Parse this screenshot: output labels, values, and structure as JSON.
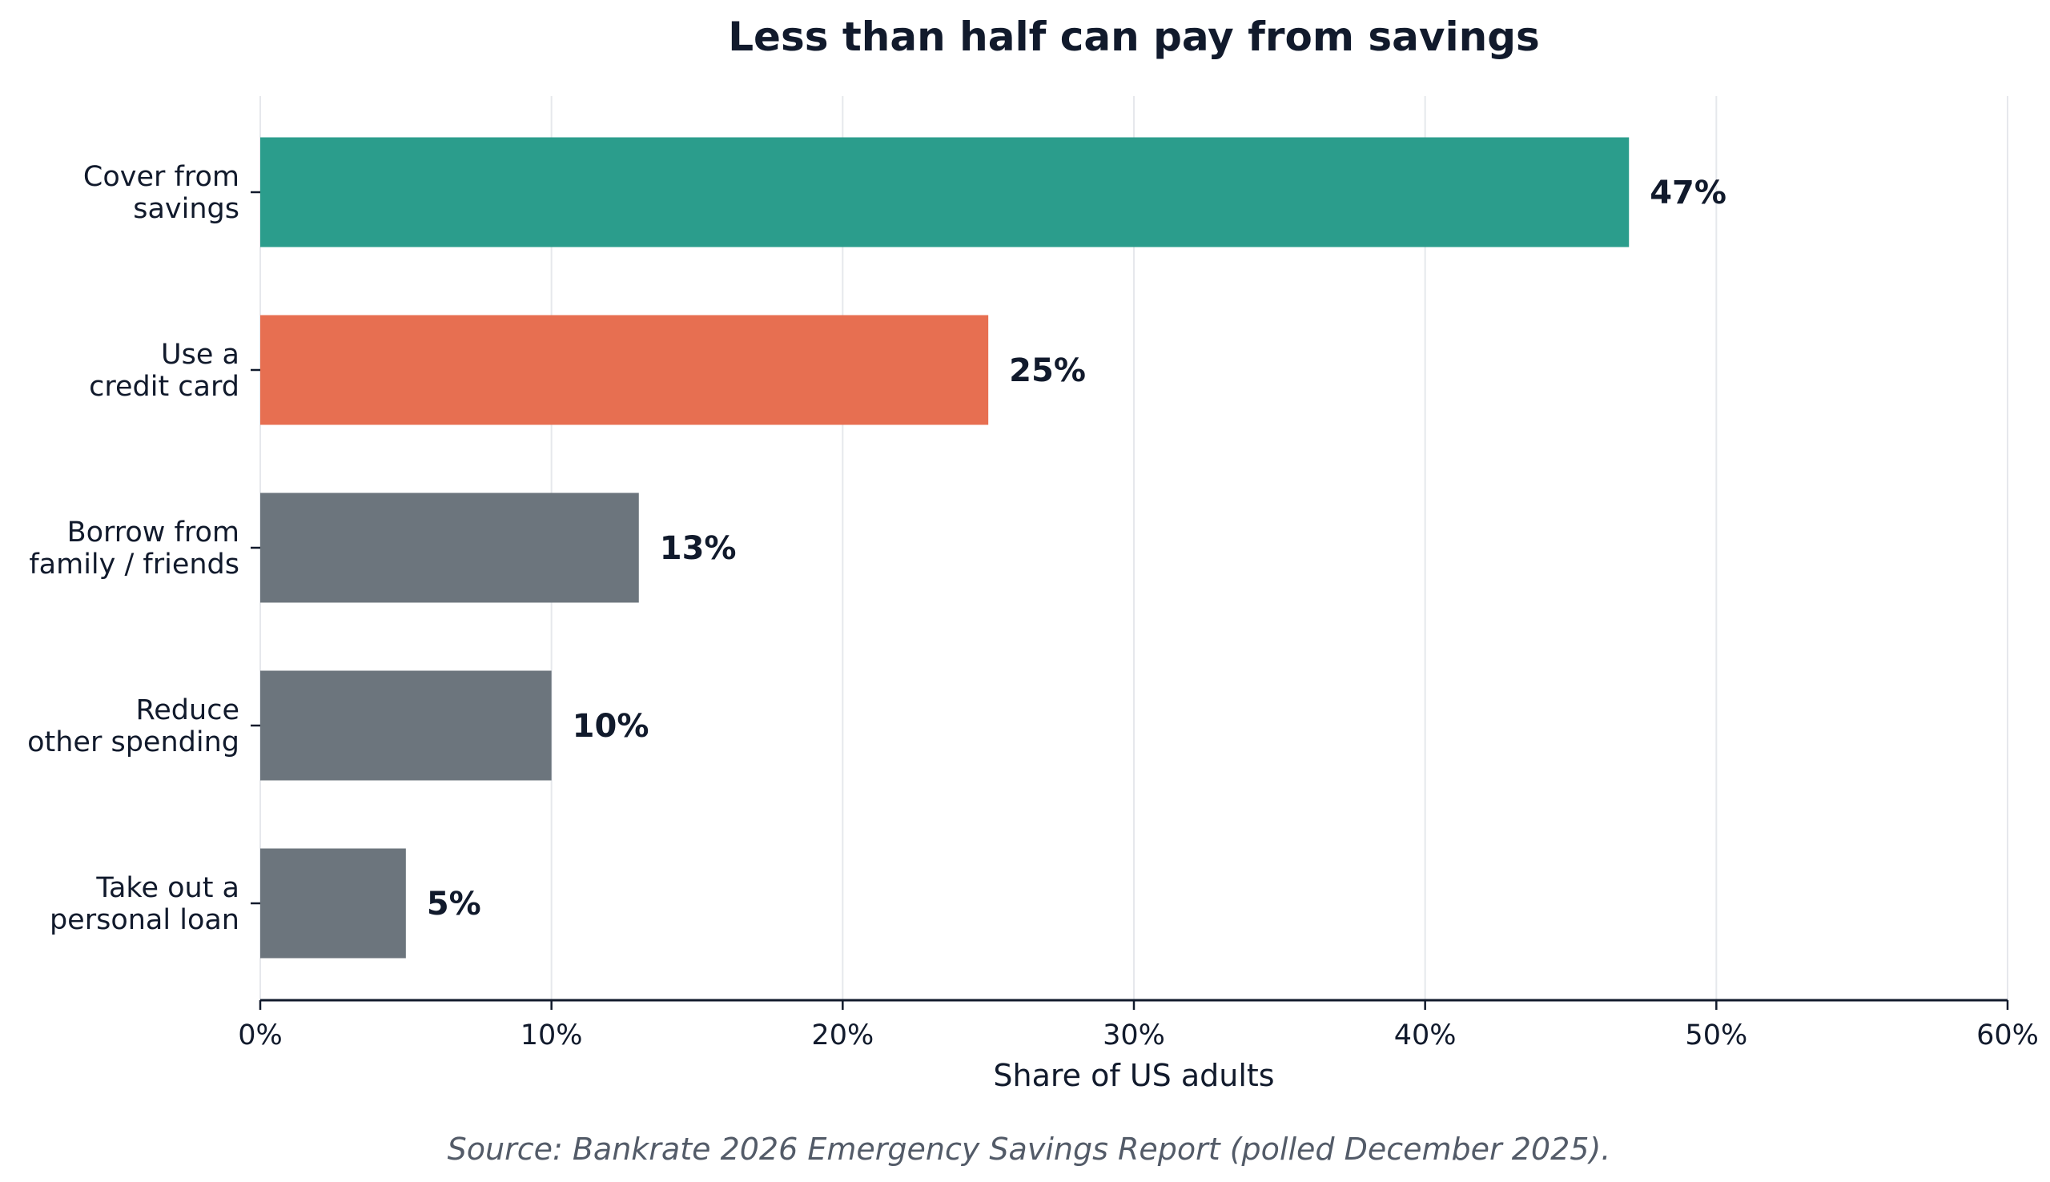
{
  "chart_data": {
    "type": "bar",
    "orientation": "horizontal",
    "title": "Less than half can pay from savings",
    "xlabel": "Share of US adults",
    "ylabel": "",
    "categories": [
      [
        "Cover from",
        "savings"
      ],
      [
        "Use a",
        "credit card"
      ],
      [
        "Borrow from",
        "family / friends"
      ],
      [
        "Reduce",
        "other spending"
      ],
      [
        "Take out a",
        "personal loan"
      ]
    ],
    "values": [
      47,
      25,
      13,
      10,
      5
    ],
    "value_labels": [
      "47%",
      "25%",
      "13%",
      "10%",
      "5%"
    ],
    "bar_colors": [
      "#2b9d8c",
      "#e76f51",
      "#6c757d",
      "#6c757d",
      "#6c757d"
    ],
    "xlim": [
      0,
      60
    ],
    "xticks": [
      0,
      10,
      20,
      30,
      40,
      50,
      60
    ],
    "xtick_labels": [
      "0%",
      "10%",
      "20%",
      "30%",
      "40%",
      "50%",
      "60%"
    ],
    "grid": "vertical",
    "legend": "none",
    "source": "Source: Bankrate 2026 Emergency Savings Report (polled December 2025)."
  }
}
